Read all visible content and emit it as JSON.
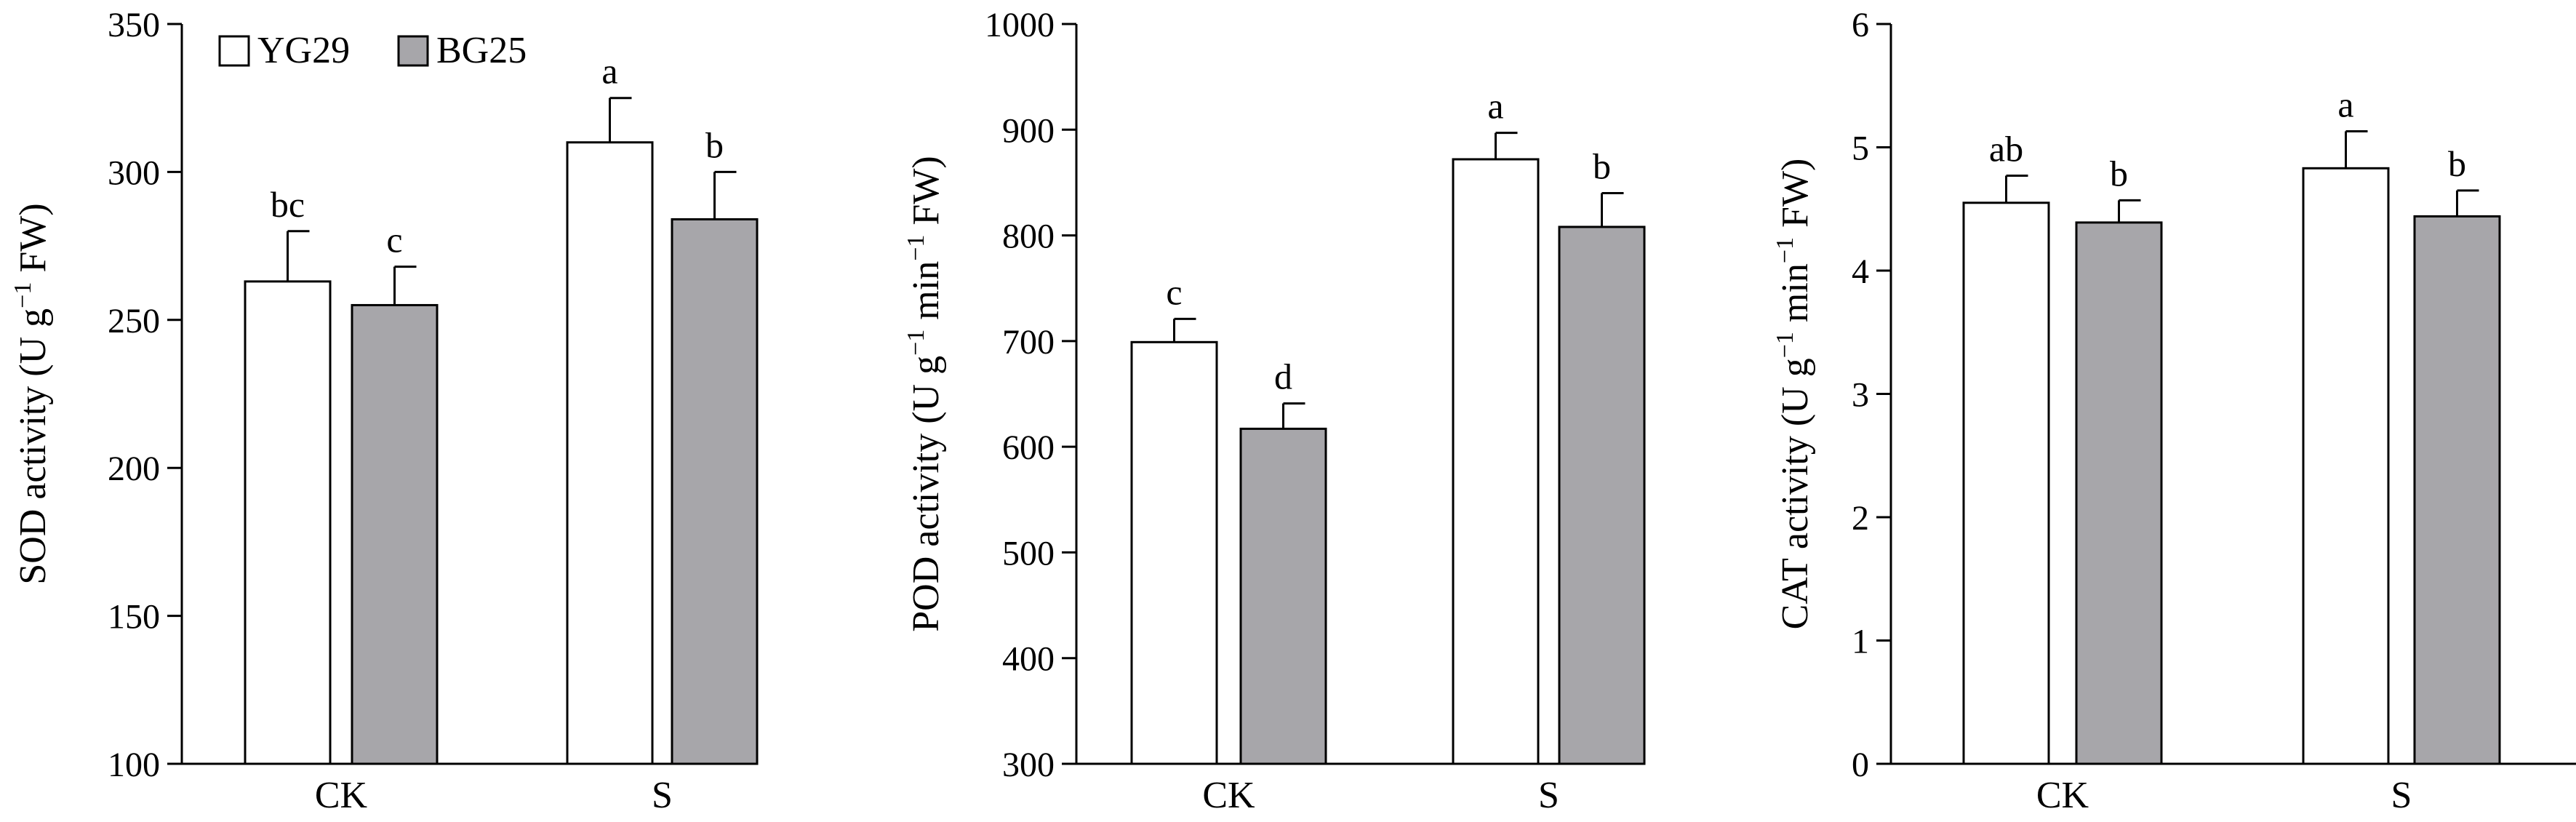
{
  "legend": {
    "items": [
      {
        "name": "YG29",
        "color": "#ffffff"
      },
      {
        "name": "BG25",
        "color": "#a7a6aa"
      }
    ]
  },
  "chart_data": [
    {
      "type": "bar",
      "categories": [
        "CK",
        "S"
      ],
      "series": [
        {
          "name": "YG29",
          "values": [
            263,
            310
          ],
          "errors": [
            17,
            15
          ],
          "letters": [
            "bc",
            "a"
          ],
          "color": "#ffffff"
        },
        {
          "name": "BG25",
          "values": [
            255,
            284
          ],
          "errors": [
            13,
            16
          ],
          "letters": [
            "c",
            "b"
          ],
          "color": "#a7a6aa"
        }
      ],
      "ylabel_main": "SOD activity (U g",
      "ylabel_sup": "−1",
      "ylabel_tail": " FW)",
      "ylim": [
        100,
        350
      ],
      "yticks": [
        "100",
        "150",
        "200",
        "250",
        "300",
        "350"
      ],
      "legend": "top-left"
    },
    {
      "type": "bar",
      "categories": [
        "CK",
        "S"
      ],
      "series": [
        {
          "name": "YG29",
          "values": [
            699,
            872
          ],
          "errors": [
            22,
            25
          ],
          "letters": [
            "c",
            "a"
          ],
          "color": "#ffffff"
        },
        {
          "name": "BG25",
          "values": [
            617,
            808
          ],
          "errors": [
            24,
            32
          ],
          "letters": [
            "d",
            "b"
          ],
          "color": "#a7a6aa"
        }
      ],
      "ylabel_main": "POD activity (U g",
      "ylabel_sup": "−1",
      "ylabel_mid": " min",
      "ylabel_sup2": "−1",
      "ylabel_tail": " FW)",
      "ylim": [
        300,
        1000
      ],
      "yticks": [
        "300",
        "400",
        "500",
        "600",
        "700",
        "800",
        "900",
        "1000"
      ]
    },
    {
      "type": "bar",
      "categories": [
        "CK",
        "S"
      ],
      "series": [
        {
          "name": "YG29",
          "values": [
            4.55,
            4.83
          ],
          "errors": [
            0.22,
            0.3
          ],
          "letters": [
            "ab",
            "a"
          ],
          "color": "#ffffff"
        },
        {
          "name": "BG25",
          "values": [
            4.39,
            4.44
          ],
          "errors": [
            0.18,
            0.21
          ],
          "letters": [
            "b",
            "b"
          ],
          "color": "#a7a6aa"
        }
      ],
      "ylabel_main": "CAT activity (U g",
      "ylabel_sup": "−1",
      "ylabel_mid": " min",
      "ylabel_sup2": "−1",
      "ylabel_tail": " FW)",
      "ylim": [
        0,
        6
      ],
      "yticks": [
        "0",
        "1",
        "2",
        "3",
        "4",
        "5",
        "6"
      ]
    }
  ]
}
